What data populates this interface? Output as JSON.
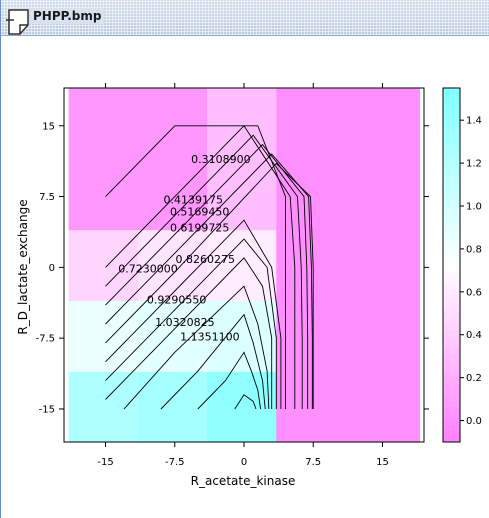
{
  "window": {
    "title": "PHPP.bmp"
  },
  "chart_data": {
    "type": "heatmap",
    "xlabel": "R_acetate_kinase",
    "ylabel": "R_D_lactate_exchange",
    "x_ticks": [
      "-15",
      "-7.5",
      "0",
      "7.5",
      "15"
    ],
    "x_tick_values": [
      -15,
      -7.5,
      0,
      7.5,
      15
    ],
    "y_ticks": [
      "-15",
      "-7.5",
      "0",
      "7.5",
      "15"
    ],
    "y_tick_values": [
      -15,
      -7.5,
      0,
      7.5,
      15
    ],
    "xlim": [
      -19.5,
      19.5
    ],
    "ylim": [
      -18.5,
      19
    ],
    "colorbar": {
      "ticks": [
        "0.0",
        "0.2",
        "0.4",
        "0.6",
        "0.8",
        "1.0",
        "1.2",
        "1.4"
      ],
      "tick_values": [
        0,
        0.2,
        0.4,
        0.6,
        0.8,
        1.0,
        1.2,
        1.4
      ],
      "range": [
        -0.1,
        1.55
      ],
      "low_color": "#ff80ff",
      "mid_color": "#ffffff",
      "high_color": "#80ffff"
    },
    "grid": {
      "x_edges": [
        -19,
        -11.5,
        -4,
        3.5,
        19
      ],
      "y_edges": [
        -18.5,
        -11,
        -3.5,
        4,
        19
      ],
      "values": [
        [
          1.25,
          1.3,
          1.45,
          0.0
        ],
        [
          0.85,
          0.9,
          0.95,
          0.0
        ],
        [
          0.45,
          0.55,
          0.6,
          0.0
        ],
        [
          0.05,
          0.05,
          0.3,
          0.0
        ]
      ]
    },
    "contour_labels": [
      "0.3108900",
      "0.4139175",
      "0.5169450",
      "0.6199725",
      "0.7230000",
      "0.8260275",
      "0.9290550",
      "1.0320825",
      "1.1351100"
    ],
    "contours": [
      {
        "level": "0.3108900",
        "label_at": [
          -2.5,
          11.5
        ],
        "points": [
          [
            -15,
            7.5
          ],
          [
            -7.5,
            15
          ],
          [
            1.5,
            15
          ],
          [
            4.5,
            7.5
          ],
          [
            4.5,
            0
          ],
          [
            4.5,
            -7.5
          ],
          [
            4.5,
            -15
          ]
        ]
      },
      {
        "level": "0.4139175",
        "label_at": [
          -5.5,
          7.2
        ],
        "points": [
          [
            -15,
            0
          ],
          [
            -7.5,
            7.5
          ],
          [
            0,
            15
          ],
          [
            5,
            7.5
          ],
          [
            5.5,
            0
          ],
          [
            5.5,
            -7.5
          ],
          [
            5.5,
            -15
          ]
        ]
      },
      {
        "level": "0.5169450",
        "label_at": [
          -4.8,
          5.9
        ],
        "points": [
          [
            -15,
            -2
          ],
          [
            -7.5,
            5.5
          ],
          [
            1,
            14
          ],
          [
            5.8,
            7.5
          ],
          [
            6.2,
            0
          ],
          [
            6.3,
            -7.5
          ],
          [
            6.3,
            -15
          ]
        ]
      },
      {
        "level": "0.6199725",
        "label_at": [
          -4.8,
          4.2
        ],
        "points": [
          [
            -15,
            -4
          ],
          [
            -7.5,
            3.5
          ],
          [
            2,
            13
          ],
          [
            6.5,
            7.5
          ],
          [
            6.8,
            0
          ],
          [
            6.9,
            -7.5
          ],
          [
            6.9,
            -15
          ]
        ]
      },
      {
        "level": "0.7230000",
        "label_at": [
          -10.4,
          -0.1
        ],
        "points": [
          [
            -15,
            -6
          ],
          [
            -7.5,
            1.5
          ],
          [
            3,
            12
          ],
          [
            7,
            7.5
          ],
          [
            7.3,
            0
          ],
          [
            7.4,
            -7.5
          ],
          [
            7.4,
            -15
          ]
        ]
      },
      {
        "level": "0.8260275",
        "label_at": [
          -4.2,
          0.9
        ],
        "points": [
          [
            -15,
            -8
          ],
          [
            -7.5,
            -0.5
          ],
          [
            3.5,
            11
          ],
          [
            7.2,
            7.5
          ],
          [
            7.5,
            0
          ],
          [
            7.5,
            -7.5
          ],
          [
            7.5,
            -15
          ]
        ]
      },
      {
        "level": "0.9290550",
        "label_at": [
          -7.3,
          -3.4
        ],
        "points": [
          [
            -15,
            -10
          ],
          [
            -7.5,
            -2.5
          ],
          [
            0,
            5
          ],
          [
            3,
            0
          ],
          [
            4,
            -7.5
          ],
          [
            4,
            -15
          ]
        ]
      },
      {
        "level": "1.0320825",
        "label_at": [
          -6.4,
          -5.8
        ],
        "points": [
          [
            -15,
            -12
          ],
          [
            -7.5,
            -4.5
          ],
          [
            0,
            3
          ],
          [
            2.5,
            0
          ],
          [
            3.5,
            -7.5
          ],
          [
            3.5,
            -15
          ]
        ]
      },
      {
        "level": "1.1351100",
        "label_at": [
          -3.7,
          -7.3
        ],
        "points": [
          [
            -15,
            -14
          ],
          [
            -7.5,
            -6.5
          ],
          [
            0,
            1
          ],
          [
            2,
            -2
          ],
          [
            3,
            -7.5
          ],
          [
            3,
            -15
          ]
        ]
      },
      {
        "points": [
          [
            -13,
            -15
          ],
          [
            -7.5,
            -9
          ],
          [
            0,
            -2
          ],
          [
            1.5,
            -6
          ],
          [
            2.5,
            -11
          ],
          [
            2.7,
            -15
          ]
        ]
      },
      {
        "points": [
          [
            -9,
            -15
          ],
          [
            -5,
            -11
          ],
          [
            0,
            -5
          ],
          [
            1,
            -8
          ],
          [
            2,
            -12
          ],
          [
            2.3,
            -15
          ]
        ]
      },
      {
        "points": [
          [
            -5,
            -15
          ],
          [
            -2,
            -12
          ],
          [
            0,
            -9
          ],
          [
            0.8,
            -11
          ],
          [
            1.5,
            -13
          ],
          [
            1.8,
            -15
          ]
        ]
      },
      {
        "points": [
          [
            -1,
            -15
          ],
          [
            0,
            -13.5
          ],
          [
            1,
            -14.2
          ],
          [
            1.3,
            -15
          ]
        ]
      }
    ]
  }
}
